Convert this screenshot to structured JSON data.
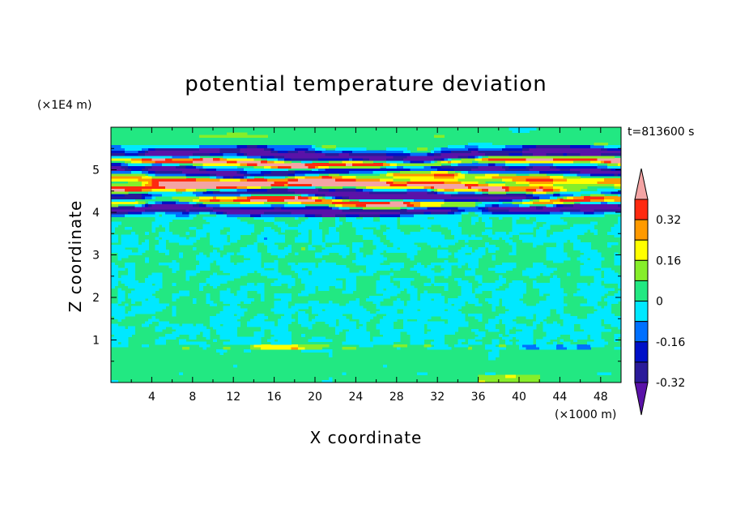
{
  "chart_data": {
    "type": "heatmap",
    "title": "potential temperature deviation",
    "xlabel": "X coordinate",
    "ylabel": "Z coordinate",
    "x_unit": "(×1000 m)",
    "y_unit": "(×1E4 m)",
    "time_label": "t=813600 s",
    "xlim": [
      0,
      50
    ],
    "ylim": [
      0,
      6
    ],
    "x_ticks": [
      "4",
      "8",
      "12",
      "16",
      "20",
      "24",
      "28",
      "32",
      "36",
      "40",
      "44",
      "48"
    ],
    "y_ticks": [
      "1",
      "2",
      "3",
      "4",
      "5"
    ],
    "colorbar": {
      "levels": [
        -0.4,
        -0.32,
        -0.24,
        -0.16,
        -0.08,
        0,
        0.08,
        0.16,
        0.24,
        0.32,
        0.4
      ],
      "tick_labels": [
        "0.32",
        "0.16",
        "0",
        "-0.16",
        "-0.32"
      ],
      "colors": [
        "#5a12a8",
        "#2a1a9a",
        "#0010c8",
        "#0070ff",
        "#00e8ff",
        "#22e882",
        "#86ee2a",
        "#ffff00",
        "#ff9a00",
        "#ff2a10",
        "#f4a4a4"
      ],
      "extend": "both"
    },
    "bands": [
      {
        "z": 5.35,
        "width": 0.12,
        "value": -0.42
      },
      {
        "z": 5.18,
        "width": 0.08,
        "value": 0.45
      },
      {
        "z": 4.98,
        "width": 0.1,
        "value": -0.36
      },
      {
        "z": 4.82,
        "width": 0.1,
        "value": 0.3
      },
      {
        "z": 4.62,
        "width": 0.1,
        "value": 0.45
      },
      {
        "z": 4.42,
        "width": 0.12,
        "value": -0.45
      },
      {
        "z": 4.25,
        "width": 0.1,
        "value": 0.45
      },
      {
        "z": 4.05,
        "width": 0.1,
        "value": -0.42
      }
    ]
  }
}
